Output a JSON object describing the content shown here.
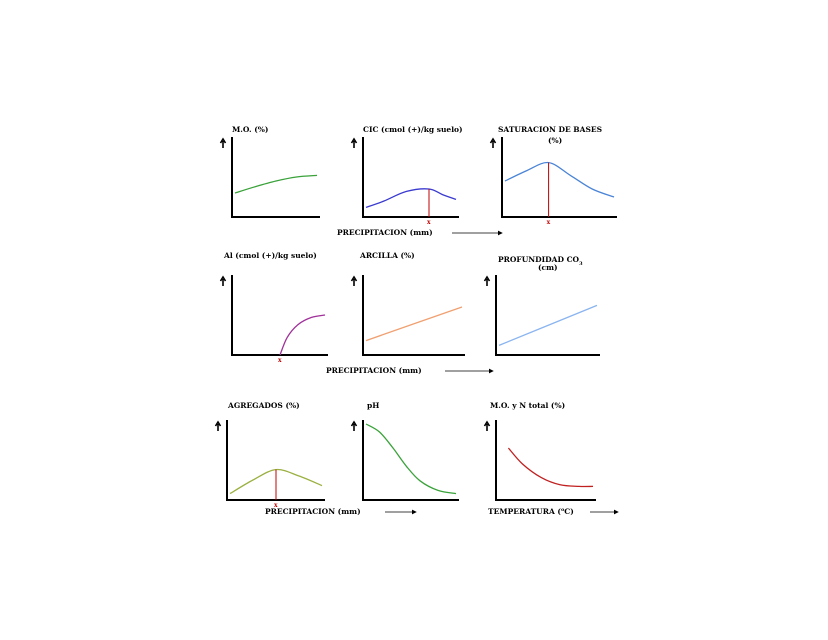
{
  "colors": {
    "green": "#3aa23a",
    "blue": "#3a3ad0",
    "steelblue": "#4a84d6",
    "purple": "#a0309a",
    "orange": "#f0a070",
    "lightblue": "#8ab4f0",
    "olive": "#9ab040",
    "red": "#c02020",
    "marker": "#c00000"
  },
  "x_labels": {
    "row1": "PRECIPITACION (mm)",
    "row2": "PRECIPITACION (mm)",
    "row3_left": "PRECIPITACION (mm)",
    "row3_right_pre": "TEMPERATURA (",
    "row3_right_deg": "o",
    "row3_right_post": "C)"
  },
  "chart_data": [
    {
      "type": "line",
      "title": "M.O. (%)",
      "x": [
        0,
        0.25,
        0.5,
        0.75,
        1
      ],
      "y": [
        0.3,
        0.38,
        0.45,
        0.5,
        0.52
      ],
      "xlim": [
        0,
        1
      ],
      "ylim": [
        0,
        1
      ],
      "color": "green",
      "marker": null
    },
    {
      "type": "line",
      "title": "CIC  (cmol (+)/kg suelo)",
      "x": [
        0,
        0.2,
        0.45,
        0.7,
        0.85,
        1
      ],
      "y": [
        0.12,
        0.2,
        0.32,
        0.35,
        0.28,
        0.22
      ],
      "xlim": [
        0,
        1
      ],
      "ylim": [
        0,
        1
      ],
      "color": "blue",
      "marker": {
        "x": 0.7,
        "y": 0.35,
        "label": "x"
      }
    },
    {
      "type": "line",
      "title": "SATURACION DE  BASES",
      "subtitle": "(%)",
      "x": [
        0,
        0.2,
        0.4,
        0.6,
        0.8,
        1
      ],
      "y": [
        0.45,
        0.58,
        0.68,
        0.52,
        0.35,
        0.25
      ],
      "xlim": [
        0,
        1
      ],
      "ylim": [
        0,
        1
      ],
      "color": "steelblue",
      "marker": {
        "x": 0.4,
        "y": 0.68,
        "label": "x"
      }
    },
    {
      "type": "line",
      "title": "Al (cmol (+)/kg suelo)",
      "x": [
        0.5,
        0.58,
        0.7,
        0.85,
        1
      ],
      "y": [
        0,
        0.22,
        0.38,
        0.47,
        0.5
      ],
      "xlim": [
        0,
        1
      ],
      "ylim": [
        0,
        1
      ],
      "color": "purple",
      "marker": {
        "x": 0.5,
        "y": 0,
        "label": "x"
      }
    },
    {
      "type": "line",
      "title": "ARCILLA  (%)",
      "x": [
        0,
        1
      ],
      "y": [
        0.18,
        0.6
      ],
      "xlim": [
        0,
        1
      ],
      "ylim": [
        0,
        1
      ],
      "color": "orange",
      "marker": null
    },
    {
      "type": "line",
      "title": "PROFUNDIDAD CO",
      "title_sub": "3",
      "subtitle": "(cm)",
      "x": [
        0,
        1
      ],
      "y": [
        0.12,
        0.62
      ],
      "xlim": [
        0,
        1
      ],
      "ylim": [
        0,
        1
      ],
      "color": "lightblue",
      "marker": null
    },
    {
      "type": "line",
      "title": "AGREGADOS (%)",
      "x": [
        0,
        0.25,
        0.5,
        0.75,
        1
      ],
      "y": [
        0.08,
        0.25,
        0.38,
        0.3,
        0.18
      ],
      "xlim": [
        0,
        1
      ],
      "ylim": [
        0,
        1
      ],
      "color": "olive",
      "marker": {
        "x": 0.5,
        "y": 0.38,
        "label": "x"
      }
    },
    {
      "type": "line",
      "title": "pH",
      "x": [
        0,
        0.15,
        0.3,
        0.45,
        0.6,
        0.8,
        1
      ],
      "y": [
        0.95,
        0.85,
        0.65,
        0.42,
        0.24,
        0.12,
        0.08
      ],
      "xlim": [
        0,
        1
      ],
      "ylim": [
        0,
        1
      ],
      "color": "green",
      "marker": null
    },
    {
      "type": "line",
      "title": "M.O. y N total   (%)",
      "x": [
        0.1,
        0.25,
        0.45,
        0.65,
        0.85,
        1
      ],
      "y": [
        0.65,
        0.45,
        0.28,
        0.19,
        0.17,
        0.17
      ],
      "xlim": [
        0,
        1
      ],
      "ylim": [
        0,
        1
      ],
      "color": "red",
      "marker": null
    }
  ]
}
